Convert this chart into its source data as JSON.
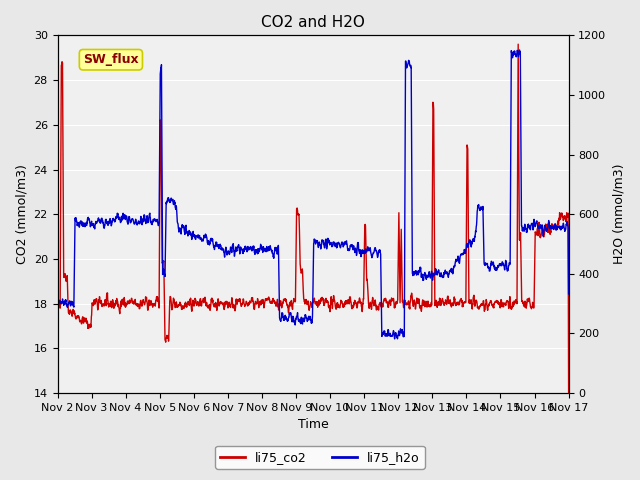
{
  "title": "CO2 and H2O",
  "xlabel": "Time",
  "ylabel_left": "CO2 (mmol/m3)",
  "ylabel_right": "H2O (mmol/m3)",
  "ylim_left": [
    14,
    30
  ],
  "ylim_right": [
    0,
    1200
  ],
  "yticks_left": [
    14,
    16,
    18,
    20,
    22,
    24,
    26,
    28,
    30
  ],
  "yticks_right": [
    0,
    200,
    400,
    600,
    800,
    1000,
    1200
  ],
  "xtick_labels": [
    "Nov 2",
    "Nov 3",
    "Nov 4",
    "Nov 5",
    "Nov 6",
    "Nov 7",
    "Nov 8",
    "Nov 9",
    "Nov 10",
    "Nov 11",
    "Nov 12",
    "Nov 13",
    "Nov 14",
    "Nov 15",
    "Nov 16",
    "Nov 17"
  ],
  "co2_color": "#cc0000",
  "h2o_color": "#0000cc",
  "bg_color": "#e8e8e8",
  "plot_bg_color": "#f0f0f0",
  "sw_flux_box_color": "#ffff99",
  "sw_flux_text_color": "#8b0000",
  "sw_flux_border_color": "#cccc00",
  "legend_co2": "li75_co2",
  "legend_h2o": "li75_h2o",
  "line_width": 1.0
}
